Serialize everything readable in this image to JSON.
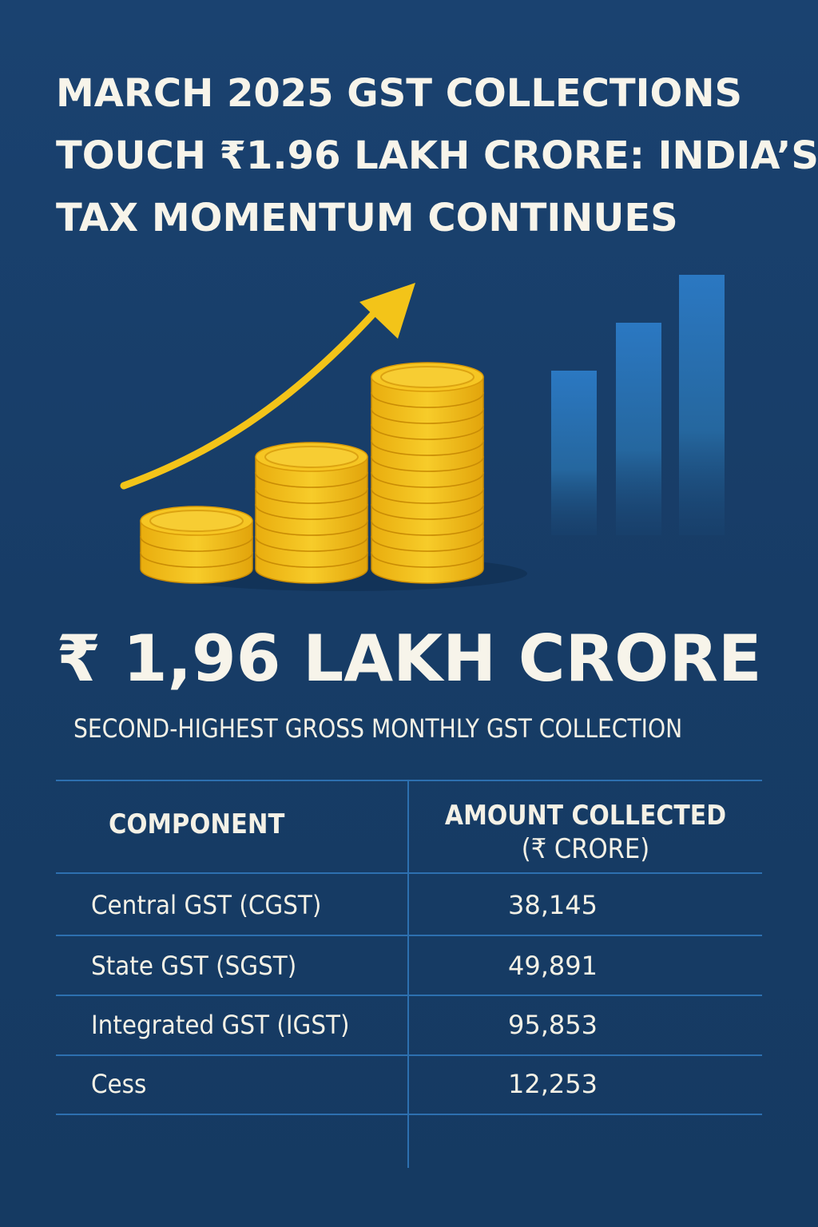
{
  "headline": {
    "lines": [
      "MARCH 2025 GST COLLECTIONS",
      "TOUCH ₹1.96 LAKH CRORE: INDIA’S",
      "TAX MOMENTUM CONTINUES"
    ]
  },
  "highlight": {
    "amount": "₹ 1,96 LAKH CRORE",
    "caption": "SECOND-HIGHEST GROSS MONTHLY GST COLLECTION"
  },
  "colors": {
    "background": "#173f68",
    "coin_gold": "#f2c21b",
    "arrow_yellow": "#f3c419",
    "bar_blue": "#2b78c2",
    "rule_blue": "#2d70b0"
  },
  "icons": [
    "rising-arrow-icon",
    "coin-stack-icon",
    "bar-chart-icon"
  ],
  "table": {
    "header": {
      "component": "COMPONENT",
      "amount_line1": "AMOUNT COLLECTED",
      "amount_line2": "(₹ CRORE)"
    },
    "rows": [
      {
        "component": "Central GST (CGST)",
        "amount": "38,145"
      },
      {
        "component": "State GST (SGST)",
        "amount": "49,891"
      },
      {
        "component": "Integrated GST (IGST)",
        "amount": "95,853"
      },
      {
        "component": "Cess",
        "amount": "12,253"
      }
    ]
  }
}
